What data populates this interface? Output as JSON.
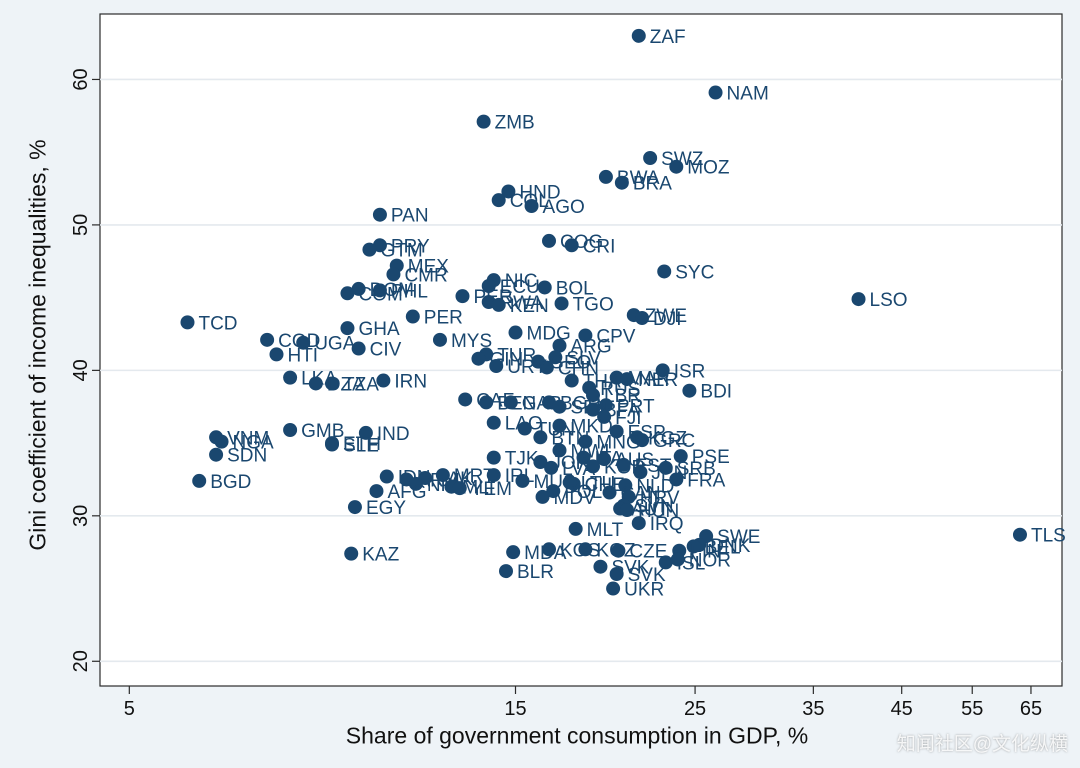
{
  "chart_data": {
    "type": "scatter",
    "xscale": "log",
    "xlabel": "Share of government consumption in GDP, %",
    "ylabel": "Gini coefficient of income inequalities, %",
    "xticks": [
      5,
      15,
      25,
      35,
      45,
      55,
      65
    ],
    "yticks": [
      20,
      30,
      40,
      50,
      60
    ],
    "xlim": [
      4.6,
      71
    ],
    "ylim": [
      18.3,
      64.5
    ],
    "grid": "horizontal",
    "marker_color": "#1a476f",
    "label_color": "#1a476f",
    "points": [
      {
        "label": "ZAF",
        "x": 21.3,
        "y": 63.0
      },
      {
        "label": "NAM",
        "x": 26.5,
        "y": 59.1
      },
      {
        "label": "ZMB",
        "x": 13.7,
        "y": 57.1
      },
      {
        "label": "SWZ",
        "x": 22.0,
        "y": 54.6
      },
      {
        "label": "MOZ",
        "x": 23.7,
        "y": 54.0
      },
      {
        "label": "BWA",
        "x": 19.4,
        "y": 53.3
      },
      {
        "label": "BRA",
        "x": 20.3,
        "y": 52.9
      },
      {
        "label": "HND",
        "x": 14.7,
        "y": 52.3
      },
      {
        "label": "COL",
        "x": 14.3,
        "y": 51.7
      },
      {
        "label": "AGO",
        "x": 15.7,
        "y": 51.3
      },
      {
        "label": "PAN",
        "x": 10.2,
        "y": 50.7
      },
      {
        "label": "COG",
        "x": 16.5,
        "y": 48.9
      },
      {
        "label": "CRI",
        "x": 17.6,
        "y": 48.6
      },
      {
        "label": "PRY",
        "x": 10.2,
        "y": 48.6
      },
      {
        "label": "GTM",
        "x": 9.9,
        "y": 48.3
      },
      {
        "label": "MEX",
        "x": 10.7,
        "y": 47.2
      },
      {
        "label": "SYC",
        "x": 22.9,
        "y": 46.8
      },
      {
        "label": "CMR",
        "x": 10.6,
        "y": 46.6
      },
      {
        "label": "NIC",
        "x": 14.1,
        "y": 46.2
      },
      {
        "label": "BOL",
        "x": 16.3,
        "y": 45.7
      },
      {
        "label": "ECU",
        "x": 13.9,
        "y": 45.8
      },
      {
        "label": "DOM",
        "x": 9.6,
        "y": 45.6
      },
      {
        "label": "PHL",
        "x": 10.2,
        "y": 45.5
      },
      {
        "label": "COM",
        "x": 9.3,
        "y": 45.3
      },
      {
        "label": "PER2",
        "x": 12.9,
        "y": 45.1
      },
      {
        "label": "RWA",
        "x": 13.9,
        "y": 44.7
      },
      {
        "label": "KEN",
        "x": 14.3,
        "y": 44.5
      },
      {
        "label": "TGO",
        "x": 17.1,
        "y": 44.6
      },
      {
        "label": "LSO",
        "x": 39.8,
        "y": 44.9
      },
      {
        "label": "ZWE",
        "x": 21.0,
        "y": 43.8
      },
      {
        "label": "DJI",
        "x": 21.5,
        "y": 43.6
      },
      {
        "label": "TCD",
        "x": 5.9,
        "y": 43.3
      },
      {
        "label": "PER",
        "x": 11.2,
        "y": 43.7
      },
      {
        "label": "GHA",
        "x": 9.3,
        "y": 42.9
      },
      {
        "label": "MDG",
        "x": 15.0,
        "y": 42.6
      },
      {
        "label": "CPV",
        "x": 18.3,
        "y": 42.4
      },
      {
        "label": "COD",
        "x": 7.4,
        "y": 42.1
      },
      {
        "label": "UGA",
        "x": 8.2,
        "y": 41.9
      },
      {
        "label": "MYS",
        "x": 12.1,
        "y": 42.1
      },
      {
        "label": "ARG",
        "x": 17.0,
        "y": 41.7
      },
      {
        "label": "CIV",
        "x": 9.6,
        "y": 41.5
      },
      {
        "label": "HTI",
        "x": 7.6,
        "y": 41.1
      },
      {
        "label": "TUR",
        "x": 13.8,
        "y": 41.1
      },
      {
        "label": "SLV",
        "x": 16.8,
        "y": 40.9
      },
      {
        "label": "GIN",
        "x": 13.5,
        "y": 40.8
      },
      {
        "label": "GEO",
        "x": 16.0,
        "y": 40.6
      },
      {
        "label": "CHN",
        "x": 16.4,
        "y": 40.2
      },
      {
        "label": "URY",
        "x": 14.2,
        "y": 40.3
      },
      {
        "label": "ISR",
        "x": 22.8,
        "y": 40.0
      },
      {
        "label": "MAR",
        "x": 20.0,
        "y": 39.5
      },
      {
        "label": "NER",
        "x": 20.6,
        "y": 39.4
      },
      {
        "label": "LKA",
        "x": 7.9,
        "y": 39.5
      },
      {
        "label": "IRN",
        "x": 10.3,
        "y": 39.3
      },
      {
        "label": "TZA",
        "x": 8.9,
        "y": 39.1
      },
      {
        "label": "DZA",
        "x": 8.5,
        "y": 39.1
      },
      {
        "label": "THA",
        "x": 17.6,
        "y": 39.3
      },
      {
        "label": "RUS",
        "x": 18.5,
        "y": 38.8
      },
      {
        "label": "BDI",
        "x": 24.6,
        "y": 38.6
      },
      {
        "label": "LBR",
        "x": 18.7,
        "y": 38.3
      },
      {
        "label": "CAF",
        "x": 13.0,
        "y": 38.0
      },
      {
        "label": "BEN",
        "x": 13.8,
        "y": 37.8
      },
      {
        "label": "GAB",
        "x": 14.8,
        "y": 37.8
      },
      {
        "label": "BGR",
        "x": 16.5,
        "y": 37.8
      },
      {
        "label": "PRT",
        "x": 19.4,
        "y": 37.6
      },
      {
        "label": "BFA",
        "x": 18.7,
        "y": 37.3
      },
      {
        "label": "SEN",
        "x": 17.0,
        "y": 37.5
      },
      {
        "label": "FJI",
        "x": 19.3,
        "y": 36.8
      },
      {
        "label": "LAO",
        "x": 14.1,
        "y": 36.4
      },
      {
        "label": "MKD",
        "x": 17.0,
        "y": 36.2
      },
      {
        "label": "GMB",
        "x": 7.9,
        "y": 35.9
      },
      {
        "label": "IND",
        "x": 9.8,
        "y": 35.7
      },
      {
        "label": "TUN",
        "x": 15.4,
        "y": 36.0
      },
      {
        "label": "ESP",
        "x": 20.0,
        "y": 35.8
      },
      {
        "label": "KGZ",
        "x": 21.2,
        "y": 35.4
      },
      {
        "label": "GRC",
        "x": 21.5,
        "y": 35.2
      },
      {
        "label": "BTN",
        "x": 16.1,
        "y": 35.4
      },
      {
        "label": "MNG",
        "x": 18.3,
        "y": 35.1
      },
      {
        "label": "VNM",
        "x": 6.4,
        "y": 35.4
      },
      {
        "label": "NGA",
        "x": 6.5,
        "y": 35.1
      },
      {
        "label": "SLE",
        "x": 8.9,
        "y": 34.9
      },
      {
        "label": "ETH",
        "x": 8.9,
        "y": 35.0
      },
      {
        "label": "SDN",
        "x": 6.4,
        "y": 34.2
      },
      {
        "label": "PSE",
        "x": 24.0,
        "y": 34.1
      },
      {
        "label": "TJK",
        "x": 14.1,
        "y": 34.0
      },
      {
        "label": "ITA",
        "x": 18.2,
        "y": 34.0
      },
      {
        "label": "AUS",
        "x": 19.3,
        "y": 33.9
      },
      {
        "label": "MWI",
        "x": 17.0,
        "y": 34.5
      },
      {
        "label": "JOR",
        "x": 16.1,
        "y": 33.7
      },
      {
        "label": "EST",
        "x": 20.4,
        "y": 33.5
      },
      {
        "label": "JPN",
        "x": 21.4,
        "y": 33.0
      },
      {
        "label": "SRB",
        "x": 23.0,
        "y": 33.3
      },
      {
        "label": "LVA",
        "x": 16.6,
        "y": 33.3
      },
      {
        "label": "KOR",
        "x": 18.7,
        "y": 33.4
      },
      {
        "label": "BGD",
        "x": 6.1,
        "y": 32.4
      },
      {
        "label": "IDN",
        "x": 10.4,
        "y": 32.7
      },
      {
        "label": "ARM",
        "x": 11.0,
        "y": 32.5
      },
      {
        "label": "PAK",
        "x": 11.6,
        "y": 32.6
      },
      {
        "label": "MRT",
        "x": 12.2,
        "y": 32.8
      },
      {
        "label": "NPL",
        "x": 11.3,
        "y": 32.2
      },
      {
        "label": "EGY",
        "x": 9.5,
        "y": 30.6
      },
      {
        "label": "MLI",
        "x": 12.5,
        "y": 32.0
      },
      {
        "label": "AFG",
        "x": 10.1,
        "y": 31.7
      },
      {
        "label": "YEM",
        "x": 12.8,
        "y": 31.9
      },
      {
        "label": "IRL",
        "x": 14.1,
        "y": 32.8
      },
      {
        "label": "MUS",
        "x": 15.3,
        "y": 32.4
      },
      {
        "label": "NLD",
        "x": 20.5,
        "y": 32.1
      },
      {
        "label": "CHE",
        "x": 17.7,
        "y": 32.2
      },
      {
        "label": "LTU",
        "x": 17.5,
        "y": 32.3
      },
      {
        "label": "FRA",
        "x": 23.7,
        "y": 32.5
      },
      {
        "label": "POL",
        "x": 16.7,
        "y": 31.7
      },
      {
        "label": "CAN",
        "x": 19.6,
        "y": 31.6
      },
      {
        "label": "HRV",
        "x": 20.7,
        "y": 31.3
      },
      {
        "label": "MDV",
        "x": 16.2,
        "y": 31.3
      },
      {
        "label": "SVN",
        "x": 20.4,
        "y": 30.7
      },
      {
        "label": "AUT",
        "x": 20.2,
        "y": 30.5
      },
      {
        "label": "HUN",
        "x": 20.6,
        "y": 30.4
      },
      {
        "label": "IRQ",
        "x": 21.3,
        "y": 29.5
      },
      {
        "label": "MLT",
        "x": 17.8,
        "y": 29.1
      },
      {
        "label": "SWE",
        "x": 25.8,
        "y": 28.6
      },
      {
        "label": "DNK",
        "x": 25.3,
        "y": 28.0
      },
      {
        "label": "BEL",
        "x": 24.9,
        "y": 27.9
      },
      {
        "label": "FIN",
        "x": 23.9,
        "y": 27.6
      },
      {
        "label": "NOR",
        "x": 23.8,
        "y": 27.0
      },
      {
        "label": "ISL",
        "x": 23.0,
        "y": 26.8
      },
      {
        "label": "TLS",
        "x": 63.0,
        "y": 28.7
      },
      {
        "label": "KAZ",
        "x": 9.4,
        "y": 27.4
      },
      {
        "label": "MDA",
        "x": 14.9,
        "y": 27.5
      },
      {
        "label": "KOS",
        "x": 16.5,
        "y": 27.7
      },
      {
        "label": "KGZ2",
        "x": 18.3,
        "y": 27.7
      },
      {
        "label": "CZE",
        "x": 20.1,
        "y": 27.6
      },
      {
        "label": "SVK",
        "x": 19.1,
        "y": 26.5
      },
      {
        "label": "BLR",
        "x": 14.6,
        "y": 26.2
      },
      {
        "label": "SVK2",
        "x": 20.0,
        "y": 26.0
      },
      {
        "label": "UKR",
        "x": 19.8,
        "y": 25.0
      }
    ]
  },
  "display_labels": {
    "PER2": "PER",
    "KGZ2": "KGZ",
    "SVK2": "SVK"
  },
  "watermark": "知闻社区@文化纵横"
}
